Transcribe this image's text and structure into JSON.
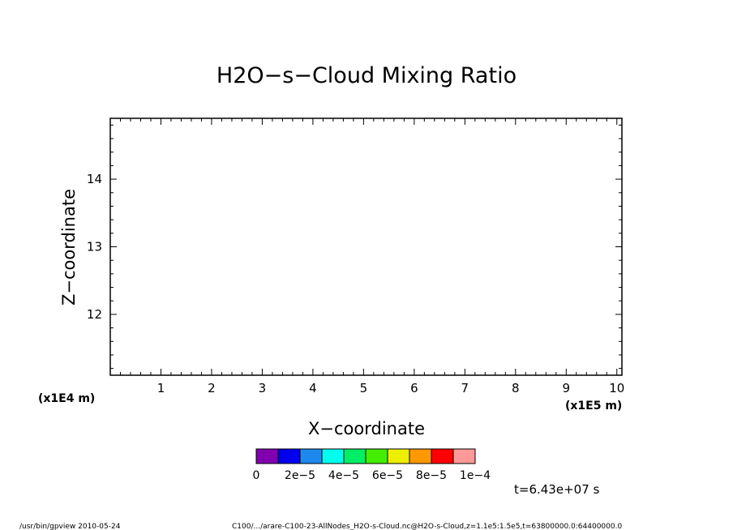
{
  "chart_data": {
    "type": "heatmap",
    "title": "H2O−s−Cloud Mixing Ratio",
    "xlabel": "X−coordinate",
    "ylabel": "Z−coordinate",
    "x_unit": "(x1E5 m)",
    "y_unit": "(x1E4 m)",
    "xlim": [
      0.0,
      10.1
    ],
    "ylim": [
      11.1,
      14.9
    ],
    "x_ticks": [
      1,
      2,
      3,
      4,
      5,
      6,
      7,
      8,
      9,
      10
    ],
    "x_tick_labels": [
      "1",
      "2",
      "3",
      "4",
      "5",
      "6",
      "7",
      "8",
      "9",
      "10"
    ],
    "y_ticks": [
      12,
      13,
      14
    ],
    "y_tick_labels": [
      "12",
      "13",
      "14"
    ],
    "values": [],
    "grid": false,
    "colorbar": {
      "colors": [
        "#8000b0",
        "#0000ee",
        "#1e88ee",
        "#00ffee",
        "#00ee66",
        "#44ee00",
        "#eeee00",
        "#ff9900",
        "#ff0000",
        "#ff9999"
      ],
      "labels": [
        "0",
        "2e−5",
        "4e−5",
        "6e−5",
        "8e−5",
        "1e−4"
      ]
    },
    "time_label": "t=6.43e+07 s"
  },
  "footer": {
    "left": "/usr/bin/gpview   2010-05-24",
    "right": "C100/.../arare-C100-23-AllNodes_H2O-s-Cloud.nc@H2O-s-Cloud,z=1.1e5:1.5e5,t=63800000.0:64400000.0"
  }
}
